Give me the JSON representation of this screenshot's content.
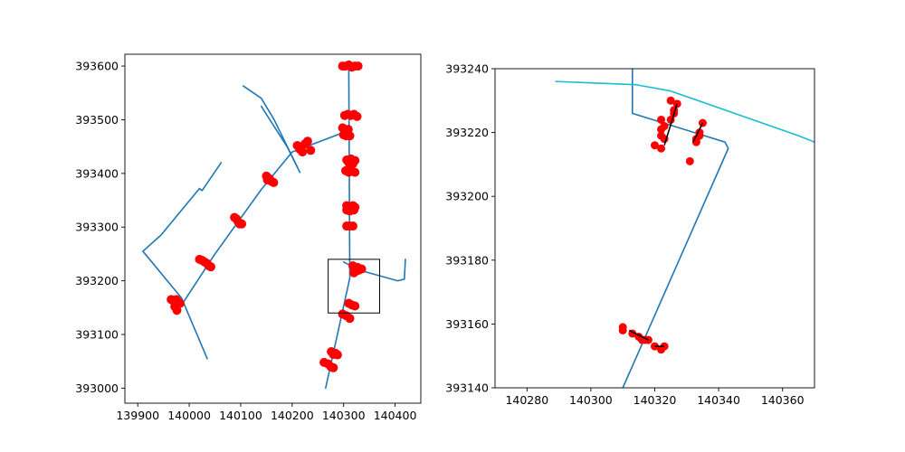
{
  "chart_data": [
    {
      "type": "scatter",
      "panel": "overview",
      "xlim": [
        139875,
        140450
      ],
      "ylim": [
        392972,
        393622
      ],
      "xticks": [
        139900,
        140000,
        140100,
        140200,
        140300,
        140400
      ],
      "yticks": [
        393000,
        393100,
        393200,
        393300,
        393400,
        393500,
        393600
      ],
      "grid": false,
      "line_color": "#1f77b4",
      "point_color": "#ff0000",
      "box_color": "#000000",
      "lines": [
        [
          [
            140105,
            393563
          ],
          [
            140140,
            393540
          ],
          [
            140165,
            393500
          ],
          [
            140210,
            393412
          ]
        ],
        [
          [
            140140,
            393525
          ],
          [
            140190,
            393450
          ],
          [
            140215,
            393402
          ]
        ],
        [
          [
            140062,
            393420
          ],
          [
            140025,
            393368
          ],
          [
            140020,
            393372
          ],
          [
            139945,
            393285
          ],
          [
            139910,
            393255
          ],
          [
            139985,
            393168
          ],
          [
            140035,
            393055
          ]
        ],
        [
          [
            139975,
            393140
          ],
          [
            140050,
            393250
          ],
          [
            140140,
            393370
          ],
          [
            140200,
            393440
          ],
          [
            140310,
            393480
          ]
        ],
        [
          [
            140310,
            393600
          ],
          [
            140312,
            393205
          ],
          [
            140265,
            393000
          ]
        ],
        [
          [
            140300,
            393235
          ],
          [
            140330,
            393220
          ],
          [
            140405,
            393200
          ],
          [
            140418,
            393203
          ],
          [
            140420,
            393240
          ]
        ]
      ],
      "points": [
        [
          140298,
          393600
        ],
        [
          140304,
          393600
        ],
        [
          140310,
          393602
        ],
        [
          140316,
          393598
        ],
        [
          140322,
          393600
        ],
        [
          140328,
          393600
        ],
        [
          140302,
          393508
        ],
        [
          140308,
          393510
        ],
        [
          140314,
          393508
        ],
        [
          140320,
          393510
        ],
        [
          140326,
          393506
        ],
        [
          140298,
          393485
        ],
        [
          140302,
          393478
        ],
        [
          140305,
          393470
        ],
        [
          140300,
          393472
        ],
        [
          140309,
          393482
        ],
        [
          140312,
          393470
        ],
        [
          140210,
          393452
        ],
        [
          140215,
          393445
        ],
        [
          140220,
          393440
        ],
        [
          140225,
          393455
        ],
        [
          140230,
          393460
        ],
        [
          140236,
          393443
        ],
        [
          140306,
          393425
        ],
        [
          140310,
          393420
        ],
        [
          140314,
          393427
        ],
        [
          140318,
          393418
        ],
        [
          140322,
          393424
        ],
        [
          140304,
          393405
        ],
        [
          140310,
          393402
        ],
        [
          140316,
          393404
        ],
        [
          140322,
          393402
        ],
        [
          140150,
          393395
        ],
        [
          140152,
          393388
        ],
        [
          140156,
          393390
        ],
        [
          140160,
          393385
        ],
        [
          140164,
          393383
        ],
        [
          140306,
          393340
        ],
        [
          140312,
          393338
        ],
        [
          140318,
          393340
        ],
        [
          140322,
          393337
        ],
        [
          140306,
          393332
        ],
        [
          140312,
          393330
        ],
        [
          140320,
          393332
        ],
        [
          140088,
          393318
        ],
        [
          140092,
          393315
        ],
        [
          140095,
          393310
        ],
        [
          140098,
          393306
        ],
        [
          140102,
          393306
        ],
        [
          140306,
          393302
        ],
        [
          140312,
          393302
        ],
        [
          140318,
          393302
        ],
        [
          140020,
          393240
        ],
        [
          140025,
          393238
        ],
        [
          140030,
          393235
        ],
        [
          140035,
          393232
        ],
        [
          140038,
          393228
        ],
        [
          140042,
          393226
        ],
        [
          140318,
          393228
        ],
        [
          140322,
          393223
        ],
        [
          140324,
          393218
        ],
        [
          140327,
          393225
        ],
        [
          140330,
          393220
        ],
        [
          140335,
          393222
        ],
        [
          140320,
          393215
        ],
        [
          139965,
          393165
        ],
        [
          139970,
          393162
        ],
        [
          139975,
          393165
        ],
        [
          139978,
          393157
        ],
        [
          139982,
          393158
        ],
        [
          139972,
          393152
        ],
        [
          139976,
          393145
        ],
        [
          140310,
          393158
        ],
        [
          140316,
          393155
        ],
        [
          140322,
          393153
        ],
        [
          140298,
          393138
        ],
        [
          140305,
          393135
        ],
        [
          140312,
          393130
        ],
        [
          140276,
          393068
        ],
        [
          140280,
          393063
        ],
        [
          140284,
          393065
        ],
        [
          140288,
          393062
        ],
        [
          140262,
          393048
        ],
        [
          140270,
          393045
        ],
        [
          140275,
          393040
        ],
        [
          140280,
          393038
        ]
      ],
      "inset_box": {
        "x0": 140270,
        "x1": 140370,
        "y0": 393140,
        "y1": 393240
      }
    },
    {
      "type": "scatter",
      "panel": "zoom",
      "xlim": [
        140270,
        140370
      ],
      "ylim": [
        393140,
        393240
      ],
      "xticks": [
        140280,
        140300,
        140320,
        140340,
        140360
      ],
      "yticks": [
        393140,
        393160,
        393180,
        393200,
        393220,
        393240
      ],
      "grid": false,
      "point_color": "#ff0000",
      "segment_color": "#000000",
      "lines": [
        {
          "color": "#1f77b4",
          "points": [
            [
              140313,
              393240
            ],
            [
              140313,
              393226
            ]
          ]
        },
        {
          "color": "#1f77b4",
          "points": [
            [
              140313,
              393226
            ],
            [
              140342,
              393217
            ],
            [
              140343,
              393215
            ],
            [
              140310,
              393140
            ]
          ]
        },
        {
          "color": "#17becf",
          "points": [
            [
              140289,
              393236
            ],
            [
              140314,
              393235
            ],
            [
              140325,
              393233
            ],
            [
              140365,
              393219
            ],
            [
              140370,
              393217
            ]
          ]
        }
      ],
      "points": [
        [
          140325,
          393230
        ],
        [
          140327,
          393229
        ],
        [
          140326,
          393227
        ],
        [
          140326,
          393226
        ],
        [
          140325,
          393224
        ],
        [
          140322,
          393224
        ],
        [
          140323,
          393222
        ],
        [
          140322,
          393221
        ],
        [
          140322,
          393219
        ],
        [
          140323,
          393218
        ],
        [
          140320,
          393216
        ],
        [
          140322,
          393215
        ],
        [
          140335,
          393223
        ],
        [
          140334,
          393220
        ],
        [
          140334,
          393219
        ],
        [
          140333,
          393218
        ],
        [
          140333,
          393217
        ],
        [
          140331,
          393211
        ],
        [
          140310,
          393159
        ],
        [
          140310,
          393158
        ],
        [
          140313,
          393157
        ],
        [
          140315,
          393156
        ],
        [
          140316,
          393155
        ],
        [
          140317,
          393155
        ],
        [
          140318,
          393155
        ],
        [
          140320,
          393153
        ],
        [
          140322,
          393152
        ],
        [
          140323,
          393153
        ]
      ],
      "segments": [
        [
          [
            140323,
            393216
          ],
          [
            140327,
            393229
          ]
        ],
        [
          [
            140332,
            393217
          ],
          [
            140335,
            393223
          ]
        ],
        [
          [
            140312,
            393158
          ],
          [
            140318,
            393155
          ]
        ],
        [
          [
            140320,
            393153
          ],
          [
            140323,
            393153
          ]
        ]
      ]
    }
  ]
}
